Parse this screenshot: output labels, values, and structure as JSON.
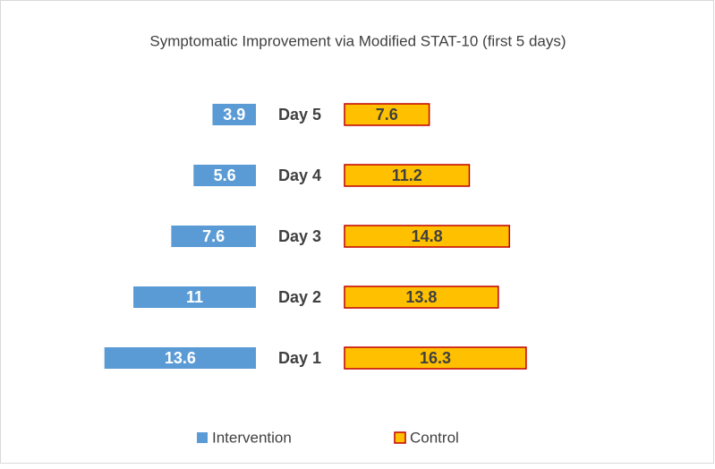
{
  "chart_data": {
    "type": "bar",
    "title": "Symptomatic Improvement via Modified STAT-10 (first 5 days)",
    "categories": [
      "Day 1",
      "Day 2",
      "Day 3",
      "Day 4",
      "Day 5"
    ],
    "series": [
      {
        "name": "Intervention",
        "color": "#5b9bd5",
        "values": [
          13.6,
          11,
          7.6,
          5.6,
          3.9
        ]
      },
      {
        "name": "Control",
        "color": "#ffc000",
        "edge_color": "#c00000",
        "values": [
          16.3,
          13.8,
          14.8,
          11.2,
          7.6
        ]
      }
    ]
  }
}
